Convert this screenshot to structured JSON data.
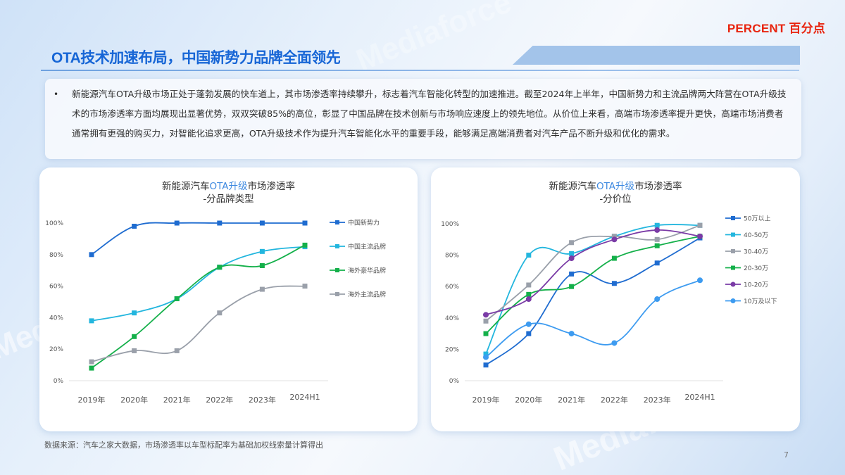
{
  "header": {
    "brand": "PERCENT 百分点",
    "title": "OTA技术加速布局，中国新势力品牌全面领先"
  },
  "summary": {
    "bullet": "•",
    "text": "新能源汽车OTA升级市场正处于蓬勃发展的快车道上，其市场渗透率持续攀升，标志着汽车智能化转型的加速推进。截至2024年上半年，中国新势力和主流品牌两大阵营在OTA升级技术的市场渗透率方面均展现出显著优势，双双突破85%的高位，彰显了中国品牌在技术创新与市场响应速度上的领先地位。从价位上来看，高端市场渗透率提升更快，高端市场消费者通常拥有更强的购买力，对智能化追求更高，OTA升级技术作为提升汽车智能化水平的重要手段，能够满足高端消费者对汽车产品不断升级和优化的需求。"
  },
  "footer": {
    "source": "数据来源：汽车之家大数据，市场渗透率以车型标配率为基础加权线索量计算得出",
    "page_number": "7"
  },
  "watermark": {
    "text": "Mediaforce"
  },
  "chart_data": [
    {
      "type": "line",
      "title": "新能源汽车OTA升级市场渗透率 -分品牌类型",
      "title_parts": {
        "pre": "新能源汽车",
        "hl": "OTA升级",
        "post": "市场渗透率",
        "line2": "-分品牌类型"
      },
      "xlabel": "",
      "ylabel": "",
      "categories": [
        "2019年",
        "2020年",
        "2021年",
        "2022年",
        "2023年",
        "2024H1"
      ],
      "ylim": [
        0,
        100
      ],
      "yticks": [
        "0%",
        "20%",
        "40%",
        "60%",
        "80%",
        "100%"
      ],
      "legend_position": "right",
      "grid": false,
      "series": [
        {
          "name": "中国新势力",
          "color": "#1f6cd0",
          "marker": "square",
          "values": [
            80,
            98,
            100,
            100,
            100,
            100
          ]
        },
        {
          "name": "中国主流品牌",
          "color": "#23b6de",
          "marker": "square",
          "values": [
            38,
            43,
            52,
            72,
            82,
            85
          ]
        },
        {
          "name": "海外豪华品牌",
          "color": "#14b04a",
          "marker": "square",
          "values": [
            8,
            28,
            52,
            72,
            73,
            86
          ]
        },
        {
          "name": "海外主流品牌",
          "color": "#9aa0aa",
          "marker": "square",
          "values": [
            12,
            19,
            19,
            43,
            58,
            60
          ]
        }
      ]
    },
    {
      "type": "line",
      "title": "新能源汽车OTA升级市场渗透率 -分价位",
      "title_parts": {
        "pre": "新能源汽车",
        "hl": "OTA升级",
        "post": "市场渗透率",
        "line2": "-分价位"
      },
      "xlabel": "",
      "ylabel": "",
      "categories": [
        "2019年",
        "2020年",
        "2021年",
        "2022年",
        "2023年",
        "2024H1"
      ],
      "ylim": [
        0,
        100
      ],
      "yticks": [
        "0%",
        "20%",
        "40%",
        "60%",
        "80%",
        "100%"
      ],
      "legend_position": "right",
      "grid": false,
      "series": [
        {
          "name": "50万以上",
          "color": "#1f6cd0",
          "marker": "square",
          "values": [
            10,
            30,
            68,
            62,
            75,
            91
          ]
        },
        {
          "name": "40-50万",
          "color": "#23b6de",
          "marker": "square",
          "values": [
            17,
            80,
            81,
            92,
            99,
            99
          ]
        },
        {
          "name": "30-40万",
          "color": "#9aa0aa",
          "marker": "square",
          "values": [
            38,
            61,
            88,
            92,
            90,
            99
          ]
        },
        {
          "name": "20-30万",
          "color": "#14b04a",
          "marker": "square",
          "values": [
            30,
            55,
            60,
            78,
            86,
            92
          ]
        },
        {
          "name": "10-20万",
          "color": "#7a3ba6",
          "marker": "circle",
          "values": [
            42,
            52,
            78,
            90,
            96,
            92
          ]
        },
        {
          "name": "10万及以下",
          "color": "#3d9bf0",
          "marker": "circle",
          "values": [
            15,
            36,
            30,
            24,
            52,
            64
          ]
        }
      ]
    }
  ]
}
